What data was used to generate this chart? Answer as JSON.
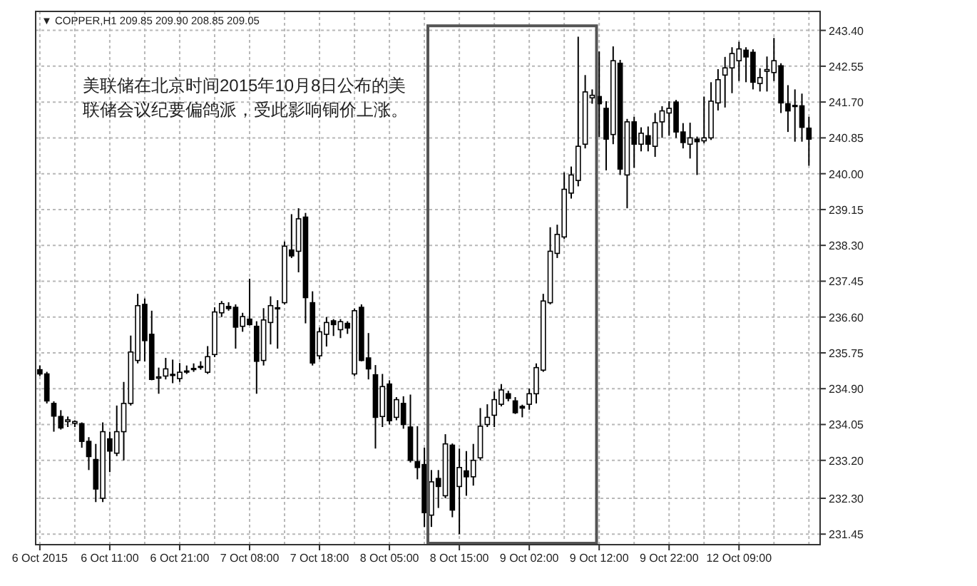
{
  "chart_data": {
    "type": "candlestick",
    "title": "▼ COPPER,H1  209.85 209.90 208.85 209.05",
    "annotations": [
      "美联储在北京时间2015年10月8日公布的美联储会议纪要偏鸽派，受此影响铜价上涨。"
    ],
    "grid": true,
    "ylim": [
      231.2,
      243.85
    ],
    "yticks": [
      {
        "value": 243.4,
        "label": "243.40"
      },
      {
        "value": 242.55,
        "label": "242.55"
      },
      {
        "value": 241.7,
        "label": "241.70"
      },
      {
        "value": 240.85,
        "label": "240.85"
      },
      {
        "value": 240.0,
        "label": "240.00"
      },
      {
        "value": 239.15,
        "label": "239.15"
      },
      {
        "value": 238.3,
        "label": "238.30"
      },
      {
        "value": 237.45,
        "label": "237.45"
      },
      {
        "value": 236.6,
        "label": "236.60"
      },
      {
        "value": 235.75,
        "label": "235.75"
      },
      {
        "value": 234.9,
        "label": "234.90"
      },
      {
        "value": 234.05,
        "label": "234.05"
      },
      {
        "value": 233.2,
        "label": "233.20"
      },
      {
        "value": 232.3,
        "label": "232.30"
      },
      {
        "value": 231.45,
        "label": "231.45"
      }
    ],
    "categories": [
      "6 Oct 2015",
      null,
      null,
      null,
      null,
      null,
      null,
      null,
      null,
      null,
      "6 Oct 11:00",
      null,
      null,
      null,
      null,
      null,
      null,
      null,
      null,
      null,
      "6 Oct 21:00",
      null,
      null,
      null,
      null,
      null,
      null,
      null,
      null,
      null,
      "7 Oct 08:00",
      null,
      null,
      null,
      null,
      null,
      null,
      null,
      null,
      null,
      "7 Oct 18:00",
      null,
      null,
      null,
      null,
      null,
      null,
      null,
      null,
      null,
      "8 Oct 05:00",
      null,
      null,
      null,
      null,
      null,
      null,
      null,
      null,
      null,
      "8 Oct 15:00",
      null,
      null,
      null,
      null,
      null,
      null,
      null,
      null,
      null,
      "9 Oct 02:00",
      null,
      null,
      null,
      null,
      null,
      null,
      null,
      null,
      null,
      "9 Oct 12:00",
      null,
      null,
      null,
      null,
      null,
      null,
      null,
      null,
      null,
      "9 Oct 22:00",
      null,
      null,
      null,
      null,
      null,
      null,
      null,
      null,
      null,
      "12 Oct 09:00",
      null,
      null,
      null,
      null,
      null,
      null,
      null,
      null,
      null,
      null
    ],
    "ohlc": [
      [
        235.35,
        235.45,
        235.2,
        235.25
      ],
      [
        235.25,
        235.3,
        234.55,
        234.61
      ],
      [
        234.55,
        234.6,
        233.88,
        234.25
      ],
      [
        234.24,
        234.39,
        233.93,
        233.97
      ],
      [
        234.12,
        234.24,
        233.99,
        234.16
      ],
      [
        234.08,
        234.15,
        233.99,
        234.12
      ],
      [
        234.07,
        234.1,
        233.5,
        233.65
      ],
      [
        233.65,
        233.75,
        232.97,
        233.29
      ],
      [
        233.22,
        233.59,
        232.21,
        232.52
      ],
      [
        232.3,
        234.1,
        232.21,
        233.88
      ],
      [
        233.71,
        233.88,
        232.92,
        233.42
      ],
      [
        233.37,
        234.5,
        233.3,
        233.88
      ],
      [
        233.88,
        235.06,
        233.2,
        234.55
      ],
      [
        234.55,
        236.16,
        234.5,
        235.77
      ],
      [
        235.57,
        237.15,
        235.5,
        236.87
      ],
      [
        236.9,
        237.04,
        235.55,
        236.04
      ],
      [
        236.19,
        236.75,
        235.1,
        235.12
      ],
      [
        235.15,
        235.4,
        234.78,
        235.18
      ],
      [
        235.2,
        235.63,
        235.12,
        235.37
      ],
      [
        235.22,
        235.59,
        235.03,
        235.24
      ],
      [
        235.14,
        235.51,
        235.06,
        235.29
      ],
      [
        235.3,
        235.45,
        235.25,
        235.32
      ],
      [
        235.36,
        235.5,
        235.3,
        235.38
      ],
      [
        235.41,
        235.55,
        235.35,
        235.43
      ],
      [
        235.29,
        235.91,
        235.25,
        235.66
      ],
      [
        235.71,
        236.83,
        235.65,
        236.72
      ],
      [
        236.7,
        236.98,
        236.6,
        236.92
      ],
      [
        236.85,
        236.95,
        236.75,
        236.8
      ],
      [
        236.83,
        236.9,
        235.85,
        236.36
      ],
      [
        236.38,
        236.7,
        236.25,
        236.61
      ],
      [
        236.55,
        237.51,
        236.4,
        236.42
      ],
      [
        236.38,
        236.5,
        234.78,
        235.55
      ],
      [
        235.57,
        236.81,
        235.45,
        236.53
      ],
      [
        236.47,
        237.09,
        235.95,
        236.87
      ],
      [
        236.8,
        237.0,
        235.85,
        236.82
      ],
      [
        236.94,
        238.39,
        236.9,
        238.28
      ],
      [
        238.19,
        239.04,
        238.0,
        238.05
      ],
      [
        238.16,
        239.18,
        237.66,
        238.93
      ],
      [
        238.97,
        239.07,
        236.45,
        237.06
      ],
      [
        236.94,
        237.21,
        235.45,
        235.51
      ],
      [
        235.68,
        236.35,
        235.6,
        236.25
      ],
      [
        236.19,
        236.6,
        235.9,
        236.47
      ],
      [
        236.51,
        236.55,
        236.15,
        236.42
      ],
      [
        236.3,
        236.55,
        236.1,
        236.49
      ],
      [
        236.45,
        236.5,
        236.2,
        236.34
      ],
      [
        235.25,
        236.8,
        235.2,
        236.75
      ],
      [
        236.83,
        236.9,
        235.55,
        235.57
      ],
      [
        235.63,
        236.22,
        235.12,
        235.37
      ],
      [
        235.23,
        235.46,
        233.48,
        234.22
      ],
      [
        234.24,
        235.25,
        233.99,
        234.95
      ],
      [
        235.01,
        235.1,
        234.05,
        234.14
      ],
      [
        234.22,
        234.7,
        234.15,
        234.64
      ],
      [
        234.55,
        234.72,
        233.95,
        234.05
      ],
      [
        233.99,
        234.76,
        233.15,
        233.2
      ],
      [
        233.17,
        234.01,
        232.75,
        233.03
      ],
      [
        233.1,
        233.5,
        231.62,
        231.96
      ],
      [
        231.9,
        232.97,
        231.62,
        232.69
      ],
      [
        232.77,
        232.97,
        232.07,
        232.58
      ],
      [
        232.36,
        233.82,
        232.3,
        233.59
      ],
      [
        233.56,
        233.6,
        231.85,
        232.02
      ],
      [
        232.58,
        233.48,
        231.45,
        233.03
      ],
      [
        232.95,
        233.42,
        232.36,
        232.81
      ],
      [
        232.81,
        233.59,
        232.6,
        233.2
      ],
      [
        233.26,
        234.44,
        233.2,
        234.01
      ],
      [
        234.05,
        234.53,
        233.99,
        234.22
      ],
      [
        234.27,
        234.84,
        233.99,
        234.64
      ],
      [
        234.53,
        235.01,
        234.48,
        234.87
      ],
      [
        234.78,
        234.85,
        234.6,
        234.67
      ],
      [
        234.61,
        234.7,
        234.3,
        234.33
      ],
      [
        234.48,
        234.52,
        234.22,
        234.44
      ],
      [
        234.53,
        234.9,
        234.4,
        234.78
      ],
      [
        234.78,
        235.5,
        234.55,
        235.4
      ],
      [
        235.34,
        237.15,
        235.3,
        236.98
      ],
      [
        236.94,
        238.73,
        236.9,
        238.16
      ],
      [
        238.11,
        238.79,
        238.0,
        238.56
      ],
      [
        238.5,
        240.03,
        238.45,
        239.63
      ],
      [
        239.54,
        240.17,
        239.41,
        239.97
      ],
      [
        239.84,
        243.25,
        239.7,
        240.65
      ],
      [
        240.7,
        242.34,
        240.6,
        241.94
      ],
      [
        241.8,
        242.0,
        241.66,
        241.86
      ],
      [
        241.83,
        242.9,
        240.87,
        241.66
      ],
      [
        241.55,
        241.72,
        240.08,
        240.82
      ],
      [
        240.93,
        243.02,
        240.7,
        242.68
      ],
      [
        242.62,
        242.7,
        239.97,
        240.11
      ],
      [
        239.97,
        241.3,
        239.18,
        241.23
      ],
      [
        241.23,
        241.35,
        240.14,
        240.7
      ],
      [
        240.7,
        241.1,
        240.53,
        240.96
      ],
      [
        240.9,
        241.12,
        240.53,
        240.7
      ],
      [
        240.65,
        241.44,
        240.4,
        241.21
      ],
      [
        241.23,
        241.6,
        240.85,
        241.49
      ],
      [
        241.44,
        241.72,
        240.9,
        241.55
      ],
      [
        241.7,
        241.75,
        240.85,
        240.99
      ],
      [
        240.99,
        241.2,
        240.6,
        240.74
      ],
      [
        240.7,
        241.21,
        240.36,
        240.85
      ],
      [
        240.82,
        240.88,
        239.97,
        240.76
      ],
      [
        240.78,
        241.83,
        240.72,
        240.85
      ],
      [
        240.85,
        242.17,
        240.8,
        241.72
      ],
      [
        241.68,
        242.48,
        241.5,
        242.23
      ],
      [
        242.34,
        242.77,
        241.57,
        242.51
      ],
      [
        242.51,
        243.0,
        241.91,
        242.85
      ],
      [
        242.68,
        243.13,
        242.2,
        242.96
      ],
      [
        242.93,
        243.0,
        242.17,
        242.77
      ],
      [
        242.88,
        242.95,
        242.0,
        242.17
      ],
      [
        242.14,
        242.5,
        241.95,
        242.28
      ],
      [
        242.43,
        242.78,
        241.95,
        242.47
      ],
      [
        242.4,
        243.22,
        242.2,
        242.68
      ],
      [
        242.56,
        242.62,
        241.44,
        241.68
      ],
      [
        241.66,
        242.1,
        240.99,
        241.49
      ],
      [
        241.6,
        242.0,
        240.76,
        241.62
      ],
      [
        241.61,
        241.9,
        240.76,
        241.1
      ],
      [
        241.08,
        241.35,
        240.19,
        240.82
      ]
    ]
  }
}
